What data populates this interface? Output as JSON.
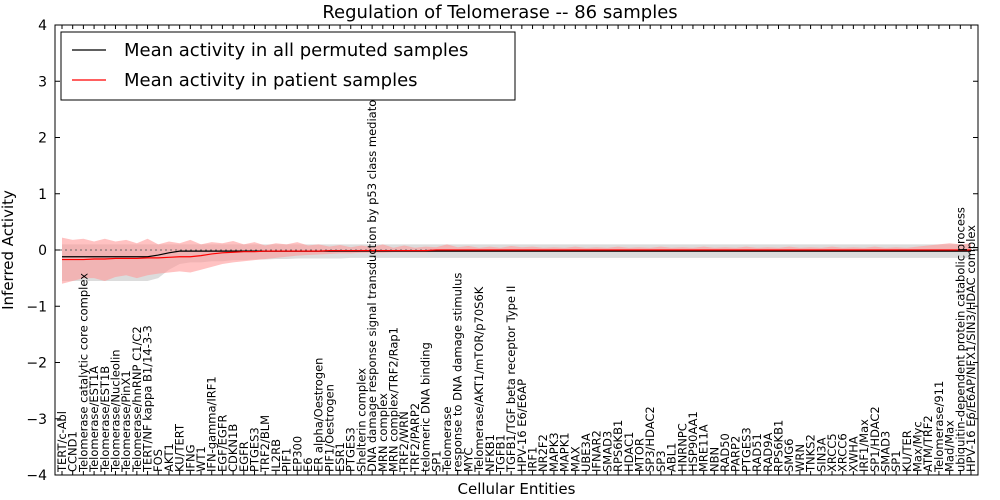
{
  "chart_data": {
    "type": "line",
    "title": "Regulation of Telomerase -- 86 samples",
    "xlabel": "Cellular Entities",
    "ylabel": "Inferred Activity",
    "ylim": [
      -4,
      4
    ],
    "yticks": [
      "4",
      "3",
      "2",
      "1",
      "0",
      "−1",
      "−2",
      "−3",
      "−4"
    ],
    "legend_position": "top-left",
    "categories": [
      "TERT/c-Abl",
      "CCND1",
      "Telomerase catalytic core complex",
      "Telomerase/EST1A",
      "Telomerase/EST1B",
      "Telomerase/Nucleolin",
      "Telomerase/PinX1",
      "Telomerase/hnRNP C1/C2",
      "TERT/NF kappa B1/14-3-3",
      "FOS",
      "AKT1",
      "KU/TERT",
      "IFNG",
      "WT1",
      "IFN-gamma/IRF1",
      "EGF/EGFR",
      "CDKN1B",
      "EGFR",
      "PTGES3",
      "TRF2/BLM",
      "IL2RB",
      "PIF1",
      "EP300",
      "E6",
      "ER alpha/Oestrogen",
      "PIF1/Oestrogen",
      "ESR1",
      "PTGES3",
      "Shelterin complex",
      "DNA damage response signal transduction by p53 class mediator",
      "MRN complex",
      "MRN complex/TRF2/Rap1",
      "TRF2/WRN",
      "TRF2/PARP2",
      "telomeric DNA binding",
      "SP1",
      "Telomerase",
      "response to DNA damage stimulus",
      "MYC",
      "Telomerase/AKT1/mTOR/p70S6K",
      "NFKB1",
      "TGFB1",
      "TGFB1/TGF beta receptor Type II",
      "HPV-16 E6/E6AP",
      "IRF1",
      "NR2F2",
      "MAPK3",
      "MAPK1",
      "MAX",
      "UBE3A",
      "IFNAR2",
      "SMAD3",
      "RPS6KB1",
      "HDAC1",
      "MTOR",
      "SP3/HDAC2",
      "SP3",
      "ABL1",
      "HNRNPC",
      "HSP90AA1",
      "MRE11A",
      "NBN",
      "RAD50",
      "PARP2",
      "PTGES3",
      "RAD51",
      "RAD9A",
      "RPS6KB1",
      "SMG6",
      "WRN",
      "TNKS2",
      "SIN3A",
      "XRCC5",
      "XRCC6",
      "XWHA",
      "IRF1/Max",
      "SP1/HDAC2",
      "SMAD3",
      "SP1",
      "KU/TER",
      "Max/Myc",
      "ATM/TRF2",
      "Telomerase/911",
      "Mad/Max",
      "ubiquitin-dependent protein catabolic process",
      "HPV-16 E6/E6AP/NFX1/SIN3/HDAC complex"
    ],
    "series": [
      {
        "name": "Mean activity in all permuted samples",
        "color": "#000000",
        "band_color": "#c0c0c0",
        "values": [
          -0.12,
          -0.12,
          -0.12,
          -0.12,
          -0.12,
          -0.12,
          -0.12,
          -0.12,
          -0.12,
          -0.09,
          -0.05,
          -0.02,
          -0.02,
          -0.02,
          -0.02,
          -0.02,
          -0.02,
          -0.02,
          -0.02,
          -0.02,
          -0.02,
          -0.02,
          -0.02,
          -0.02,
          -0.02,
          -0.02,
          -0.02,
          -0.02,
          -0.02,
          -0.02,
          -0.02,
          -0.02,
          -0.02,
          -0.02,
          -0.02,
          -0.02,
          -0.02,
          -0.02,
          -0.02,
          -0.02,
          -0.02,
          -0.02,
          -0.02,
          -0.02,
          -0.02,
          -0.02,
          -0.02,
          -0.02,
          -0.02,
          -0.02,
          -0.02,
          -0.02,
          -0.02,
          -0.02,
          -0.02,
          -0.02,
          -0.02,
          -0.02,
          -0.02,
          -0.02,
          -0.02,
          -0.02,
          -0.02,
          -0.02,
          -0.02,
          -0.02,
          -0.02,
          -0.02,
          -0.02,
          -0.02,
          -0.02,
          -0.02,
          -0.02,
          -0.02,
          -0.02,
          -0.02,
          -0.02,
          -0.02,
          -0.02,
          -0.02,
          -0.02,
          -0.02,
          -0.02,
          -0.02,
          -0.02,
          -0.02
        ],
        "lower": [
          -0.55,
          -0.55,
          -0.55,
          -0.55,
          -0.55,
          -0.55,
          -0.55,
          -0.55,
          -0.55,
          -0.5,
          -0.35,
          -0.25,
          -0.22,
          -0.22,
          -0.2,
          -0.2,
          -0.18,
          -0.18,
          -0.17,
          -0.17,
          -0.16,
          -0.16,
          -0.15,
          -0.15,
          -0.15,
          -0.15,
          -0.15,
          -0.14,
          -0.14,
          -0.14,
          -0.14,
          -0.14,
          -0.14,
          -0.14,
          -0.14,
          -0.14,
          -0.14,
          -0.14,
          -0.14,
          -0.14,
          -0.14,
          -0.14,
          -0.14,
          -0.14,
          -0.14,
          -0.14,
          -0.14,
          -0.14,
          -0.14,
          -0.14,
          -0.14,
          -0.14,
          -0.14,
          -0.14,
          -0.14,
          -0.14,
          -0.14,
          -0.14,
          -0.14,
          -0.14,
          -0.14,
          -0.14,
          -0.14,
          -0.14,
          -0.14,
          -0.14,
          -0.14,
          -0.14,
          -0.14,
          -0.14,
          -0.14,
          -0.14,
          -0.14,
          -0.14,
          -0.14,
          -0.14,
          -0.14,
          -0.14,
          -0.14,
          -0.14,
          -0.14,
          -0.14,
          -0.14,
          -0.14,
          -0.14,
          -0.14
        ],
        "upper": [
          0.1,
          0.1,
          0.1,
          0.1,
          0.1,
          0.1,
          0.1,
          0.1,
          0.1,
          0.1,
          0.1,
          0.1,
          0.1,
          0.1,
          0.1,
          0.1,
          0.1,
          0.1,
          0.1,
          0.1,
          0.1,
          0.1,
          0.1,
          0.1,
          0.1,
          0.1,
          0.1,
          0.1,
          0.1,
          0.1,
          0.1,
          0.1,
          0.1,
          0.1,
          0.1,
          0.1,
          0.1,
          0.1,
          0.1,
          0.1,
          0.1,
          0.1,
          0.1,
          0.1,
          0.1,
          0.1,
          0.1,
          0.1,
          0.1,
          0.1,
          0.1,
          0.1,
          0.1,
          0.1,
          0.1,
          0.1,
          0.1,
          0.1,
          0.1,
          0.1,
          0.1,
          0.1,
          0.1,
          0.1,
          0.1,
          0.1,
          0.1,
          0.1,
          0.1,
          0.1,
          0.1,
          0.1,
          0.1,
          0.1,
          0.1,
          0.1,
          0.1,
          0.1,
          0.1,
          0.1,
          0.1,
          0.1,
          0.1,
          0.1,
          0.1,
          0.1
        ]
      },
      {
        "name": "Mean activity in patient samples",
        "color": "#ff0000",
        "band_color": "#ff9999",
        "values": [
          -0.17,
          -0.17,
          -0.17,
          -0.16,
          -0.16,
          -0.15,
          -0.15,
          -0.15,
          -0.14,
          -0.14,
          -0.13,
          -0.12,
          -0.12,
          -0.1,
          -0.07,
          -0.05,
          -0.04,
          -0.03,
          -0.03,
          -0.02,
          -0.02,
          -0.02,
          -0.02,
          -0.02,
          -0.02,
          -0.01,
          -0.01,
          -0.01,
          -0.01,
          -0.01,
          -0.01,
          -0.01,
          -0.01,
          -0.01,
          -0.01,
          0.0,
          0.0,
          0.0,
          0.0,
          0.0,
          0.0,
          0.0,
          0.0,
          0.0,
          0.0,
          0.0,
          0.0,
          0.0,
          0.0,
          0.0,
          0.0,
          0.0,
          0.0,
          0.0,
          0.0,
          0.0,
          0.0,
          0.0,
          0.0,
          0.0,
          0.0,
          0.0,
          0.0,
          0.0,
          0.0,
          0.0,
          0.0,
          0.0,
          0.0,
          0.0,
          0.0,
          0.0,
          0.0,
          0.0,
          0.0,
          0.0,
          0.0,
          0.0,
          0.0,
          0.0,
          0.0,
          0.0,
          0.0,
          0.0,
          0.0,
          0.0
        ],
        "lower": [
          -0.6,
          -0.55,
          -0.5,
          -0.5,
          -0.55,
          -0.48,
          -0.45,
          -0.5,
          -0.45,
          -0.42,
          -0.4,
          -0.38,
          -0.4,
          -0.35,
          -0.3,
          -0.25,
          -0.22,
          -0.2,
          -0.18,
          -0.16,
          -0.14,
          -0.12,
          -0.1,
          -0.09,
          -0.08,
          -0.07,
          -0.06,
          -0.06,
          -0.05,
          -0.05,
          -0.05,
          -0.04,
          -0.04,
          -0.04,
          -0.04,
          -0.03,
          -0.03,
          -0.03,
          -0.03,
          -0.03,
          -0.03,
          -0.03,
          -0.03,
          -0.03,
          -0.03,
          -0.03,
          -0.03,
          -0.03,
          -0.03,
          -0.03,
          -0.03,
          -0.03,
          -0.03,
          -0.03,
          -0.03,
          -0.03,
          -0.03,
          -0.03,
          -0.03,
          -0.03,
          -0.03,
          -0.03,
          -0.03,
          -0.03,
          -0.03,
          -0.03,
          -0.03,
          -0.03,
          -0.03,
          -0.03,
          -0.03,
          -0.03,
          -0.03,
          -0.03,
          -0.03,
          -0.03,
          -0.03,
          -0.03,
          -0.03,
          -0.03,
          -0.03,
          -0.03,
          -0.03,
          -0.03,
          -0.03,
          -0.03
        ],
        "upper": [
          0.22,
          0.18,
          0.2,
          0.15,
          0.2,
          0.15,
          0.18,
          0.12,
          0.2,
          0.1,
          0.15,
          0.12,
          0.18,
          0.1,
          0.14,
          0.12,
          0.16,
          0.1,
          0.14,
          0.08,
          0.12,
          0.1,
          0.14,
          0.08,
          0.1,
          0.06,
          0.09,
          0.05,
          0.08,
          0.05,
          0.1,
          0.04,
          0.08,
          0.04,
          0.06,
          0.05,
          0.1,
          0.05,
          0.07,
          0.04,
          0.06,
          0.04,
          0.07,
          0.05,
          0.06,
          0.04,
          0.05,
          0.04,
          0.06,
          0.04,
          0.05,
          0.04,
          0.06,
          0.04,
          0.05,
          0.04,
          0.06,
          0.04,
          0.05,
          0.04,
          0.06,
          0.04,
          0.05,
          0.04,
          0.06,
          0.04,
          0.05,
          0.04,
          0.06,
          0.04,
          0.05,
          0.04,
          0.06,
          0.04,
          0.05,
          0.04,
          0.06,
          0.04,
          0.05,
          0.04,
          0.06,
          0.08,
          0.1,
          0.12,
          0.1,
          0.12
        ]
      }
    ]
  }
}
